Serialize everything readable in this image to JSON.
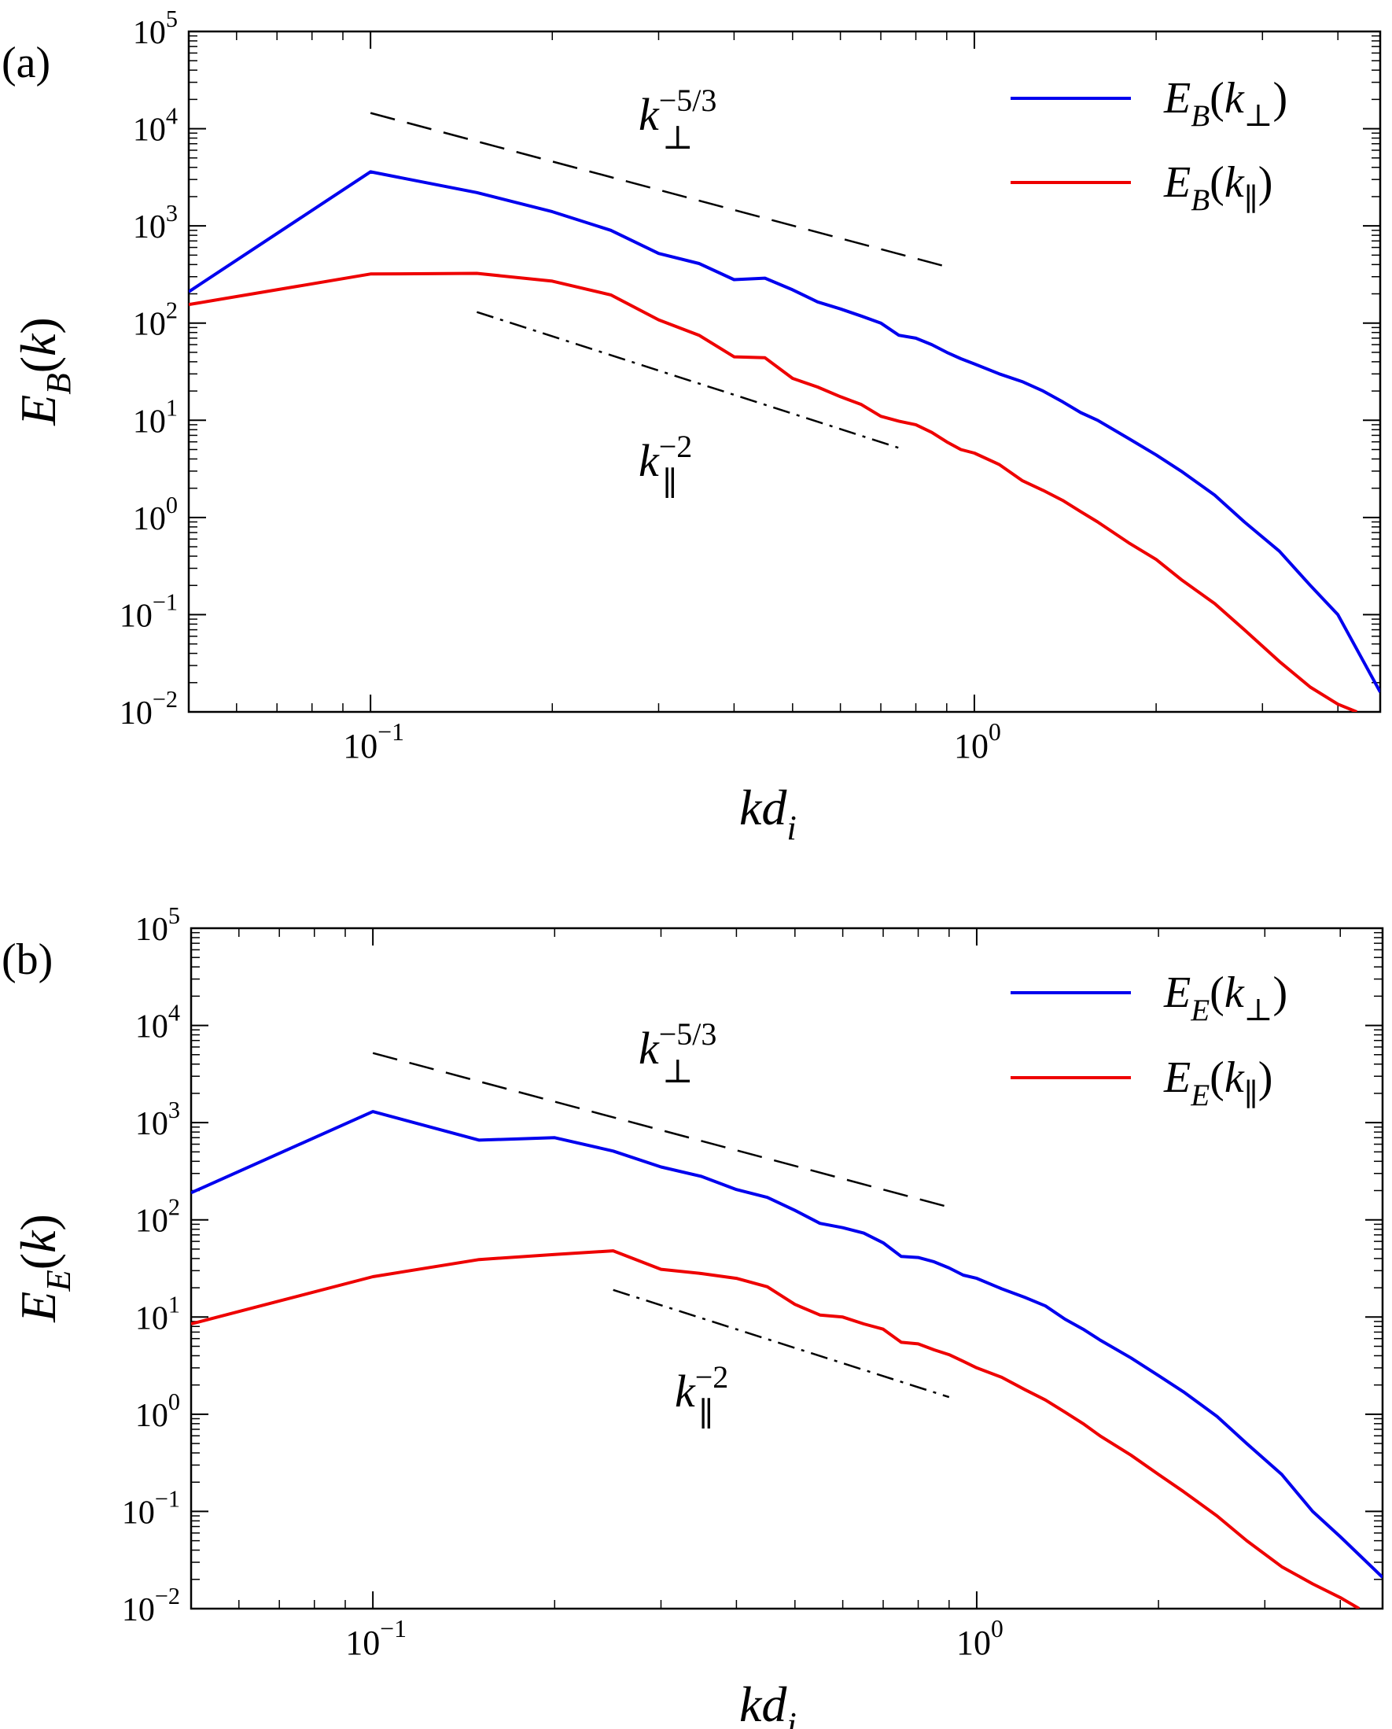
{
  "chart_data": [
    {
      "panel_label": "(a)",
      "type": "line",
      "xscale": "log",
      "yscale": "log",
      "xlim": [
        0.05,
        4.7
      ],
      "ylim": [
        0.01,
        100000
      ],
      "xticks": [
        {
          "value": 0.1,
          "base": "10",
          "exp": "−1"
        },
        {
          "value": 1.0,
          "base": "10",
          "exp": "0"
        }
      ],
      "yticks": [
        {
          "value": 0.01,
          "base": "10",
          "exp": "−2"
        },
        {
          "value": 0.1,
          "base": "10",
          "exp": "−1"
        },
        {
          "value": 1,
          "base": "10",
          "exp": "0"
        },
        {
          "value": 10,
          "base": "10",
          "exp": "1"
        },
        {
          "value": 100,
          "base": "10",
          "exp": "2"
        },
        {
          "value": 1000,
          "base": "10",
          "exp": "3"
        },
        {
          "value": 10000,
          "base": "10",
          "exp": "4"
        },
        {
          "value": 100000,
          "base": "10",
          "exp": "5"
        }
      ],
      "xlabel": {
        "main": "kd",
        "sub": "i"
      },
      "ylabel": {
        "main": "E",
        "sub": "B",
        "arg": "(k)"
      },
      "legend_position": "top-right",
      "series": [
        {
          "name": "E_B(k_perp)",
          "legend": {
            "main": "E",
            "sub": "B",
            "open": "(k",
            "argsub": "⊥",
            "close": ")"
          },
          "color": "#0000ee",
          "x": [
            0.05,
            0.1,
            0.15,
            0.2,
            0.25,
            0.3,
            0.35,
            0.4,
            0.45,
            0.5,
            0.55,
            0.6,
            0.65,
            0.7,
            0.75,
            0.8,
            0.85,
            0.9,
            0.95,
            1.0,
            1.1,
            1.2,
            1.3,
            1.4,
            1.5,
            1.6,
            1.8,
            2.0,
            2.2,
            2.5,
            2.8,
            3.2,
            3.6,
            4.0,
            4.7
          ],
          "y": [
            210,
            3600,
            2200,
            1400,
            900,
            520,
            410,
            280,
            290,
            220,
            165,
            140,
            118,
            100,
            75,
            70,
            60,
            50,
            43,
            38,
            30,
            25,
            20,
            15.5,
            12,
            10,
            6.5,
            4.4,
            3.0,
            1.7,
            0.9,
            0.45,
            0.2,
            0.1,
            0.016
          ]
        },
        {
          "name": "E_B(k_par)",
          "legend": {
            "main": "E",
            "sub": "B",
            "open": "(k",
            "argsub": "∥",
            "close": ")"
          },
          "color": "#ee0000",
          "x": [
            0.05,
            0.1,
            0.15,
            0.2,
            0.25,
            0.3,
            0.35,
            0.4,
            0.45,
            0.5,
            0.55,
            0.6,
            0.65,
            0.7,
            0.75,
            0.8,
            0.85,
            0.9,
            0.95,
            1.0,
            1.1,
            1.2,
            1.3,
            1.4,
            1.5,
            1.6,
            1.8,
            2.0,
            2.2,
            2.5,
            2.8,
            3.2,
            3.6,
            4.0,
            4.3
          ],
          "y": [
            155,
            320,
            325,
            270,
            195,
            108,
            75,
            45,
            44,
            27,
            22,
            17.5,
            14.5,
            11,
            9.8,
            9.0,
            7.5,
            6.0,
            5.0,
            4.6,
            3.5,
            2.4,
            1.9,
            1.5,
            1.15,
            0.9,
            0.55,
            0.37,
            0.23,
            0.13,
            0.07,
            0.033,
            0.018,
            0.012,
            0.01
          ]
        }
      ],
      "reference_lines": [
        {
          "style": "dashed",
          "x": [
            0.1,
            0.9
          ],
          "y": [
            14500,
            380
          ],
          "label": {
            "base": "k",
            "sub": "⊥",
            "sup": "−5/3"
          }
        },
        {
          "style": "dashdot",
          "x": [
            0.15,
            0.75
          ],
          "y": [
            130,
            5.2
          ],
          "label": {
            "base": "k",
            "sub": "∥",
            "sup": "−2"
          }
        }
      ]
    },
    {
      "panel_label": "(b)",
      "type": "line",
      "xscale": "log",
      "yscale": "log",
      "xlim": [
        0.05,
        4.7
      ],
      "ylim": [
        0.01,
        100000
      ],
      "xticks": [
        {
          "value": 0.1,
          "base": "10",
          "exp": "−1"
        },
        {
          "value": 1.0,
          "base": "10",
          "exp": "0"
        }
      ],
      "yticks": [
        {
          "value": 0.01,
          "base": "10",
          "exp": "−2"
        },
        {
          "value": 0.1,
          "base": "10",
          "exp": "−1"
        },
        {
          "value": 1,
          "base": "10",
          "exp": "0"
        },
        {
          "value": 10,
          "base": "10",
          "exp": "1"
        },
        {
          "value": 100,
          "base": "10",
          "exp": "2"
        },
        {
          "value": 1000,
          "base": "10",
          "exp": "3"
        },
        {
          "value": 10000,
          "base": "10",
          "exp": "4"
        },
        {
          "value": 100000,
          "base": "10",
          "exp": "5"
        }
      ],
      "xlabel": {
        "main": "kd",
        "sub": "i"
      },
      "ylabel": {
        "main": "E",
        "sub": "E",
        "arg": "(k)"
      },
      "legend_position": "top-right",
      "series": [
        {
          "name": "E_E(k_perp)",
          "legend": {
            "main": "E",
            "sub": "E",
            "open": "(k",
            "argsub": "⊥",
            "close": ")"
          },
          "color": "#0000ee",
          "x": [
            0.05,
            0.1,
            0.15,
            0.2,
            0.25,
            0.3,
            0.35,
            0.4,
            0.45,
            0.5,
            0.55,
            0.6,
            0.65,
            0.7,
            0.75,
            0.8,
            0.85,
            0.9,
            0.95,
            1.0,
            1.1,
            1.2,
            1.3,
            1.4,
            1.5,
            1.6,
            1.8,
            2.0,
            2.2,
            2.5,
            2.8,
            3.2,
            3.6,
            4.0,
            4.7
          ],
          "y": [
            190,
            1300,
            660,
            700,
            510,
            350,
            280,
            205,
            170,
            125,
            92,
            83,
            73,
            58,
            42,
            41,
            37,
            32,
            27,
            25,
            19.5,
            16,
            13,
            9.5,
            7.5,
            5.8,
            3.8,
            2.5,
            1.7,
            0.95,
            0.5,
            0.24,
            0.1,
            0.055,
            0.021
          ]
        },
        {
          "name": "E_E(k_par)",
          "legend": {
            "main": "E",
            "sub": "E",
            "open": "(k",
            "argsub": "∥",
            "close": ")"
          },
          "color": "#ee0000",
          "x": [
            0.05,
            0.1,
            0.15,
            0.2,
            0.25,
            0.3,
            0.35,
            0.4,
            0.45,
            0.5,
            0.55,
            0.6,
            0.65,
            0.7,
            0.75,
            0.8,
            0.85,
            0.9,
            0.95,
            1.0,
            1.1,
            1.2,
            1.3,
            1.4,
            1.5,
            1.6,
            1.8,
            2.0,
            2.2,
            2.5,
            2.8,
            3.2,
            3.6,
            4.0,
            4.3
          ],
          "y": [
            8.5,
            26,
            39,
            44,
            48,
            31,
            28,
            25,
            20.5,
            13.5,
            10.5,
            10,
            8.5,
            7.5,
            5.5,
            5.3,
            4.6,
            4.1,
            3.5,
            3.0,
            2.4,
            1.8,
            1.4,
            1.05,
            0.8,
            0.6,
            0.38,
            0.24,
            0.16,
            0.09,
            0.05,
            0.027,
            0.018,
            0.013,
            0.01
          ]
        }
      ],
      "reference_lines": [
        {
          "style": "dashed",
          "x": [
            0.1,
            0.9
          ],
          "y": [
            5200,
            135
          ],
          "label": {
            "base": "k",
            "sub": "⊥",
            "sup": "−5/3"
          }
        },
        {
          "style": "dashdot",
          "x": [
            0.25,
            0.9
          ],
          "y": [
            19,
            1.5
          ],
          "label": {
            "base": "k",
            "sub": "∥",
            "sup": "−2"
          }
        }
      ]
    }
  ]
}
